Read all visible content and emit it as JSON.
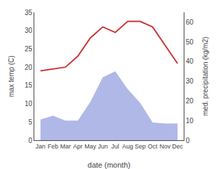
{
  "chart_data": {
    "type": "line",
    "categories": [
      "Jan",
      "Feb",
      "Mar",
      "Apr",
      "May",
      "Jun",
      "Jul",
      "Aug",
      "Sep",
      "Oct",
      "Nov",
      "Dec"
    ],
    "series": [
      {
        "type": "area",
        "axis": "y2",
        "color": "#b0b8e8",
        "values": [
          10.5,
          12.5,
          10,
          10,
          19.5,
          32,
          35,
          26,
          19,
          9,
          8.5,
          8.5
        ]
      },
      {
        "type": "line",
        "color": "#cc3333",
        "values": [
          19,
          19.5,
          20,
          23,
          28,
          31,
          29.5,
          32.5,
          32.5,
          31,
          26,
          21
        ]
      }
    ],
    "xlabel": "date (month)",
    "ylabel": "max temp (C)",
    "y2label": "med. precipitation (kg/m2)",
    "ylim": [
      0,
      35
    ],
    "yticks": [
      0,
      5,
      10,
      15,
      20,
      25,
      30,
      35
    ],
    "y2lim": [
      0,
      65
    ],
    "y2ticks": [
      0,
      10,
      20,
      30,
      40,
      50,
      60
    ],
    "grid": false
  }
}
